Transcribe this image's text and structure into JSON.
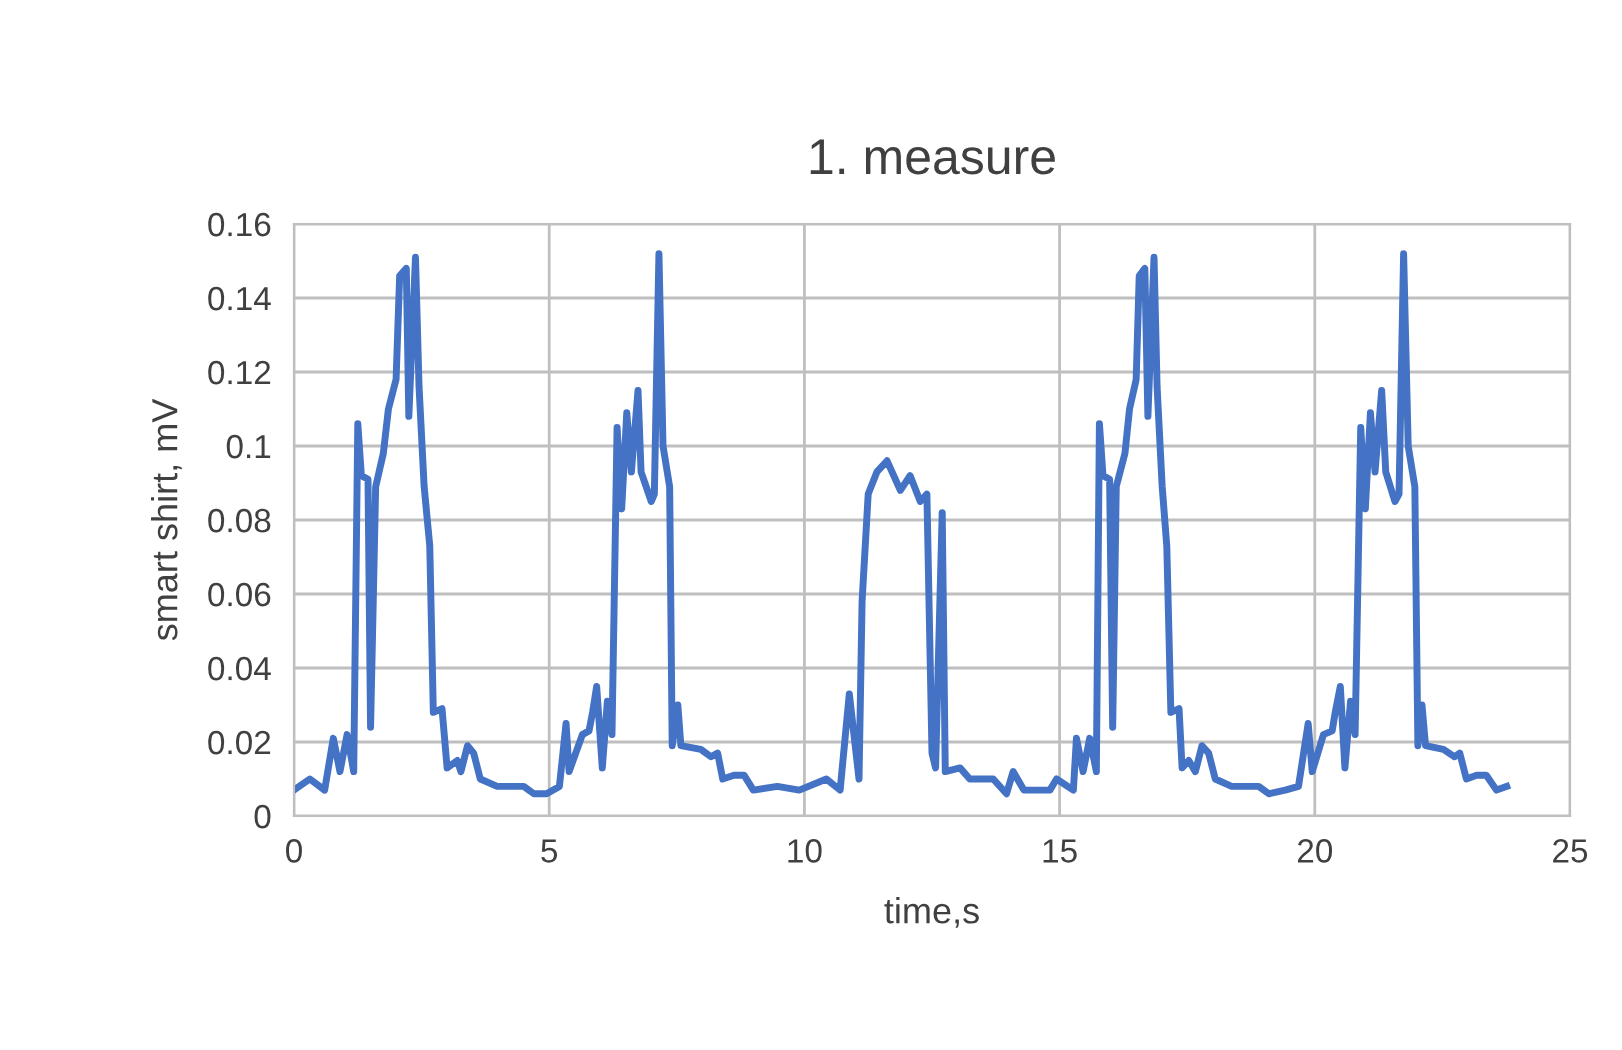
{
  "chart_data": {
    "type": "line",
    "title": "1. measure",
    "xlabel": "time,s",
    "ylabel": "smart shirt, mV",
    "xlim": [
      0,
      25
    ],
    "xticks": [
      0,
      5,
      10,
      15,
      20,
      25
    ],
    "ylim": [
      0,
      0.16
    ],
    "yticks": [
      0,
      0.02,
      0.04,
      0.06,
      0.08,
      0.1,
      0.12,
      0.14,
      0.16
    ],
    "grid": true,
    "legend": false,
    "marker": "none",
    "line_style": "solid",
    "series": [
      {
        "color": "#4472c4",
        "x": [
          0,
          0.31,
          0.6,
          0.77,
          0.9,
          1.04,
          1.17,
          1.25,
          1.32,
          1.45,
          1.5,
          1.6,
          1.75,
          1.85,
          2.0,
          2.07,
          2.2,
          2.25,
          2.38,
          2.45,
          2.55,
          2.66,
          2.73,
          2.9,
          3.0,
          3.2,
          3.27,
          3.4,
          3.52,
          3.65,
          3.98,
          4.5,
          4.7,
          4.95,
          5.2,
          5.33,
          5.39,
          5.65,
          5.78,
          5.85,
          5.93,
          6.04,
          6.14,
          6.23,
          6.33,
          6.42,
          6.52,
          6.61,
          6.74,
          6.8,
          7.0,
          7.06,
          7.15,
          7.23,
          7.36,
          7.41,
          7.52,
          7.58,
          7.97,
          8.17,
          8.3,
          8.4,
          8.62,
          8.82,
          9.0,
          9.47,
          9.9,
          10.43,
          10.7,
          10.88,
          11.07,
          11.13,
          11.25,
          11.42,
          11.62,
          11.88,
          12.07,
          12.27,
          12.4,
          12.5,
          12.57,
          12.7,
          12.76,
          13.05,
          13.24,
          13.7,
          13.96,
          14.09,
          14.3,
          14.62,
          14.81,
          14.94,
          15.27,
          15.33,
          15.46,
          15.59,
          15.72,
          15.78,
          15.85,
          15.98,
          16.04,
          16.11,
          16.28,
          16.37,
          16.5,
          16.56,
          16.67,
          16.73,
          16.85,
          16.91,
          17.01,
          17.1,
          17.18,
          17.34,
          17.4,
          17.53,
          17.66,
          17.79,
          17.92,
          18.05,
          18.37,
          18.9,
          19.1,
          19.42,
          19.68,
          19.87,
          19.95,
          20.17,
          20.34,
          20.4,
          20.5,
          20.59,
          20.7,
          20.79,
          20.9,
          20.99,
          21.09,
          21.18,
          21.31,
          21.39,
          21.57,
          21.65,
          21.74,
          21.83,
          21.96,
          22.02,
          22.1,
          22.17,
          22.52,
          22.74,
          22.84,
          22.97,
          23.17,
          23.36,
          23.56,
          23.76
        ],
        "values": [
          0.007,
          0.01,
          0.007,
          0.021,
          0.012,
          0.022,
          0.012,
          0.106,
          0.092,
          0.091,
          0.024,
          0.089,
          0.098,
          0.11,
          0.118,
          0.146,
          0.148,
          0.108,
          0.151,
          0.116,
          0.089,
          0.073,
          0.028,
          0.029,
          0.013,
          0.015,
          0.012,
          0.019,
          0.017,
          0.01,
          0.008,
          0.008,
          0.006,
          0.006,
          0.008,
          0.025,
          0.012,
          0.022,
          0.023,
          0.028,
          0.035,
          0.013,
          0.031,
          0.022,
          0.105,
          0.083,
          0.109,
          0.093,
          0.115,
          0.093,
          0.085,
          0.087,
          0.152,
          0.1,
          0.089,
          0.019,
          0.03,
          0.019,
          0.018,
          0.016,
          0.017,
          0.01,
          0.011,
          0.011,
          0.007,
          0.008,
          0.007,
          0.01,
          0.007,
          0.033,
          0.01,
          0.058,
          0.087,
          0.093,
          0.096,
          0.088,
          0.092,
          0.085,
          0.087,
          0.017,
          0.013,
          0.082,
          0.012,
          0.013,
          0.01,
          0.01,
          0.006,
          0.012,
          0.007,
          0.007,
          0.007,
          0.01,
          0.007,
          0.021,
          0.012,
          0.021,
          0.012,
          0.106,
          0.092,
          0.091,
          0.024,
          0.089,
          0.098,
          0.11,
          0.118,
          0.146,
          0.148,
          0.108,
          0.151,
          0.116,
          0.089,
          0.073,
          0.028,
          0.029,
          0.013,
          0.015,
          0.012,
          0.019,
          0.017,
          0.01,
          0.008,
          0.008,
          0.006,
          0.007,
          0.008,
          0.025,
          0.012,
          0.022,
          0.023,
          0.028,
          0.035,
          0.013,
          0.031,
          0.022,
          0.105,
          0.083,
          0.109,
          0.093,
          0.115,
          0.093,
          0.085,
          0.087,
          0.152,
          0.1,
          0.089,
          0.019,
          0.03,
          0.019,
          0.018,
          0.016,
          0.017,
          0.01,
          0.011,
          0.011,
          0.007,
          0.008
        ]
      }
    ]
  }
}
